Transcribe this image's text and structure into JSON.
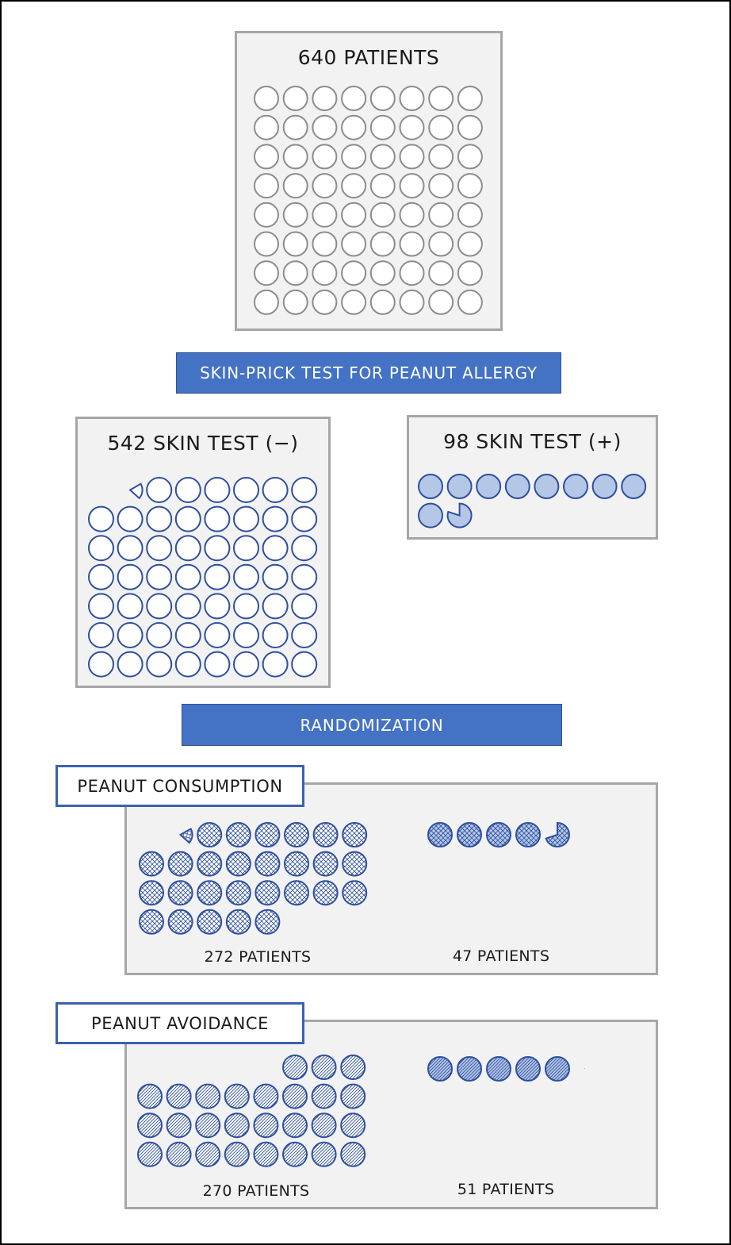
{
  "total": {
    "title": "640 PATIENTS",
    "count": 640,
    "icons": 64,
    "fill": "#ffffff",
    "stroke": "#8c8c8c",
    "pattern": "none",
    "icon_value": 10
  },
  "screening_banner": "SKIN-PRICK TEST FOR PEANUT ALLERGY",
  "skin_negative": {
    "title": "542 SKIN TEST (−)",
    "count": 542,
    "icons": 54.2,
    "fill": "#ffffff",
    "stroke": "#2f4f9e",
    "pattern": "none"
  },
  "skin_positive": {
    "title": "98 SKIN TEST (+)",
    "count": 98,
    "icons": 9.8,
    "fill": "#b4c7e7",
    "stroke": "#2f4f9e",
    "pattern": "none"
  },
  "randomization_banner": "RANDOMIZATION",
  "consumption": {
    "label": "PEANUT CONSUMPTION",
    "negative": {
      "text": "272 PATIENTS",
      "count": 272,
      "icons": 27.2,
      "fill": "#ffffff",
      "stroke": "#2f4f9e",
      "pattern": "crosshatch"
    },
    "positive": {
      "text": "47 PATIENTS",
      "count": 47,
      "icons": 4.7,
      "fill": "#b4c7e7",
      "stroke": "#2f4f9e",
      "pattern": "crosshatch"
    }
  },
  "avoidance": {
    "label": "PEANUT AVOIDANCE",
    "negative": {
      "text": "270 PATIENTS",
      "count": 270,
      "icons": 27.0,
      "fill": "#ffffff",
      "stroke": "#2f4f9e",
      "pattern": "diagonal"
    },
    "positive": {
      "text": "51 PATIENTS",
      "count": 51,
      "icons": 5.1,
      "fill": "#b4c7e7",
      "stroke": "#2f4f9e",
      "pattern": "diagonal"
    }
  },
  "colors": {
    "banner": "#4472c4",
    "panel": "#f2f2f2",
    "panel_border": "#a6a6a6",
    "icon_blue": "#2f4f9e",
    "icon_fill_blue": "#b4c7e7"
  }
}
